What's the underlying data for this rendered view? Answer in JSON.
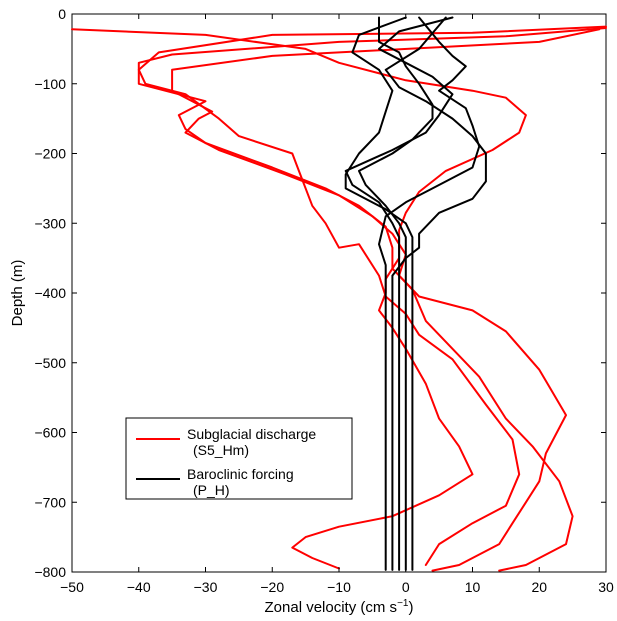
{
  "chart_data": {
    "type": "line",
    "title": "",
    "xlabel": "Zonal velocity (cm s",
    "xlabel_sup": "−1",
    "xlabel_close": ")",
    "ylabel": "Depth (m)",
    "xlim": [
      -50,
      30
    ],
    "ylim": [
      -800,
      0
    ],
    "xticks": [
      -50,
      -40,
      -30,
      -20,
      -10,
      0,
      10,
      20,
      30
    ],
    "xtick_labels": [
      "−50",
      "−40",
      "−30",
      "−20",
      "−10",
      "0",
      "10",
      "20",
      "30"
    ],
    "yticks": [
      0,
      -100,
      -200,
      -300,
      -400,
      -500,
      -600,
      -700,
      -800
    ],
    "ytick_labels": [
      "0",
      "−100",
      "−200",
      "−300",
      "−400",
      "−500",
      "−600",
      "−700",
      "−800"
    ],
    "grid": false,
    "legend": {
      "placement": "lower-left",
      "entries": [
        {
          "line1": "Subglacial discharge",
          "line2": "(S5_Hm)",
          "color": "#ff0000"
        },
        {
          "line1": "Baroclinic forcing",
          "line2": "(P_H)",
          "color": "#000000"
        }
      ]
    },
    "series": [
      {
        "group": "Subglacial discharge",
        "color": "#ff0000",
        "points": [
          [
            30,
            -18
          ],
          [
            10,
            -27
          ],
          [
            -20,
            -30
          ],
          [
            -37,
            -55
          ],
          [
            -40,
            -80
          ],
          [
            -39,
            -100
          ],
          [
            -33,
            -115
          ],
          [
            -28,
            -150
          ],
          [
            -25,
            -175
          ],
          [
            -17,
            -200
          ],
          [
            -16,
            -225
          ],
          [
            -14,
            -275
          ],
          [
            -12,
            -300
          ],
          [
            -10,
            -335
          ],
          [
            -7,
            -330
          ],
          [
            -4,
            -375
          ],
          [
            -3,
            -405
          ],
          [
            0,
            -430
          ],
          [
            2,
            -460
          ],
          [
            7,
            -495
          ],
          [
            12,
            -560
          ],
          [
            16,
            -610
          ],
          [
            17,
            -660
          ],
          [
            15,
            -705
          ],
          [
            10,
            -730
          ],
          [
            5,
            -760
          ],
          [
            3,
            -790
          ]
        ]
      },
      {
        "group": "Subglacial discharge",
        "color": "#ff0000",
        "points": [
          [
            30,
            -20
          ],
          [
            15,
            -32
          ],
          [
            -10,
            -40
          ],
          [
            -35,
            -58
          ],
          [
            -40,
            -70
          ],
          [
            -40,
            -100
          ],
          [
            -30,
            -125
          ],
          [
            -34,
            -145
          ],
          [
            -33,
            -165
          ],
          [
            -30,
            -185
          ],
          [
            -20,
            -220
          ],
          [
            -12,
            -250
          ],
          [
            -7,
            -275
          ],
          [
            -3,
            -305
          ],
          [
            -2,
            -335
          ],
          [
            -2,
            -365
          ],
          [
            1,
            -395
          ],
          [
            3,
            -440
          ],
          [
            6,
            -470
          ],
          [
            11,
            -520
          ],
          [
            15,
            -580
          ],
          [
            19,
            -620
          ],
          [
            23,
            -670
          ],
          [
            25,
            -720
          ],
          [
            24,
            -760
          ],
          [
            18,
            -790
          ],
          [
            14,
            -798
          ]
        ]
      },
      {
        "group": "Subglacial discharge",
        "color": "#ff0000",
        "points": [
          [
            29,
            -22
          ],
          [
            20,
            -40
          ],
          [
            -20,
            -60
          ],
          [
            -35,
            -80
          ],
          [
            -35,
            -110
          ],
          [
            -29,
            -140
          ],
          [
            -31,
            -150
          ],
          [
            -33,
            -170
          ],
          [
            -28,
            -195
          ],
          [
            -18,
            -230
          ],
          [
            -10,
            -260
          ],
          [
            -5,
            -290
          ],
          [
            -2,
            -315
          ],
          [
            0,
            -345
          ],
          [
            -1,
            -375
          ],
          [
            2,
            -405
          ],
          [
            10,
            -425
          ],
          [
            15,
            -455
          ],
          [
            20,
            -510
          ],
          [
            24,
            -575
          ],
          [
            21,
            -630
          ],
          [
            20,
            -670
          ],
          [
            18,
            -700
          ],
          [
            16,
            -730
          ],
          [
            14,
            -760
          ],
          [
            8,
            -790
          ],
          [
            4,
            -798
          ]
        ]
      },
      {
        "group": "Subglacial discharge",
        "color": "#ff0000",
        "points": [
          [
            -50,
            -22
          ],
          [
            -30,
            -30
          ],
          [
            -15,
            -50
          ],
          [
            -10,
            -70
          ],
          [
            0,
            -95
          ],
          [
            10,
            -110
          ],
          [
            15,
            -120
          ],
          [
            18,
            -145
          ],
          [
            17,
            -170
          ],
          [
            13,
            -195
          ],
          [
            6,
            -225
          ],
          [
            2,
            -255
          ],
          [
            0,
            -285
          ],
          [
            -1,
            -310
          ],
          [
            -1,
            -350
          ],
          [
            -3,
            -380
          ],
          [
            -3,
            -400
          ],
          [
            -4,
            -425
          ],
          [
            -2,
            -450
          ],
          [
            0,
            -480
          ],
          [
            3,
            -530
          ],
          [
            5,
            -580
          ],
          [
            8,
            -620
          ],
          [
            10,
            -660
          ],
          [
            5,
            -690
          ],
          [
            -2,
            -720
          ],
          [
            -10,
            -735
          ],
          [
            -15,
            -750
          ],
          [
            -17,
            -765
          ],
          [
            -14,
            -780
          ],
          [
            -10,
            -795
          ]
        ]
      },
      {
        "group": "Baroclinic forcing",
        "color": "#000000",
        "points": [
          [
            -4,
            -5
          ],
          [
            -4,
            -40
          ],
          [
            -1,
            -55
          ],
          [
            0,
            -75
          ],
          [
            2,
            -100
          ],
          [
            4,
            -130
          ],
          [
            4,
            -150
          ],
          [
            1,
            -180
          ],
          [
            -2,
            -200
          ],
          [
            -7,
            -225
          ],
          [
            -6,
            -245
          ],
          [
            -3,
            -275
          ],
          [
            -1,
            -300
          ],
          [
            0,
            -320
          ],
          [
            0,
            -400
          ],
          [
            0,
            -600
          ],
          [
            0,
            -797
          ]
        ]
      },
      {
        "group": "Baroclinic forcing",
        "color": "#000000",
        "points": [
          [
            0,
            -5
          ],
          [
            -7,
            -30
          ],
          [
            -8,
            -55
          ],
          [
            -4,
            -80
          ],
          [
            -2,
            -110
          ],
          [
            -3,
            -140
          ],
          [
            -4,
            -170
          ],
          [
            -7,
            -200
          ],
          [
            -9,
            -230
          ],
          [
            -9,
            -250
          ],
          [
            -3,
            -280
          ],
          [
            0,
            -300
          ],
          [
            1,
            -320
          ],
          [
            1,
            -400
          ],
          [
            1,
            -600
          ],
          [
            1,
            -797
          ]
        ]
      },
      {
        "group": "Baroclinic forcing",
        "color": "#000000",
        "points": [
          [
            7,
            -5
          ],
          [
            -1,
            -25
          ],
          [
            -4,
            -50
          ],
          [
            0,
            -70
          ],
          [
            4,
            -90
          ],
          [
            7,
            -115
          ],
          [
            5,
            -145
          ],
          [
            3,
            -170
          ],
          [
            -2,
            -195
          ],
          [
            -9,
            -225
          ],
          [
            -8,
            -245
          ],
          [
            -4,
            -270
          ],
          [
            -2,
            -300
          ],
          [
            -1,
            -320
          ],
          [
            -1,
            -400
          ],
          [
            -1,
            -600
          ],
          [
            -1,
            -797
          ]
        ]
      },
      {
        "group": "Baroclinic forcing",
        "color": "#000000",
        "points": [
          [
            2,
            -5
          ],
          [
            5,
            -40
          ],
          [
            7,
            -60
          ],
          [
            9,
            -75
          ],
          [
            7,
            -95
          ],
          [
            5,
            -110
          ],
          [
            9,
            -135
          ],
          [
            10,
            -160
          ],
          [
            11,
            -190
          ],
          [
            10,
            -220
          ],
          [
            4,
            -250
          ],
          [
            0,
            -270
          ],
          [
            -3,
            -290
          ],
          [
            -4,
            -330
          ],
          [
            -3,
            -360
          ],
          [
            -3,
            -400
          ],
          [
            -3,
            -600
          ],
          [
            -3,
            -797
          ]
        ]
      },
      {
        "group": "Baroclinic forcing",
        "color": "#000000",
        "points": [
          [
            6,
            -5
          ],
          [
            2,
            -50
          ],
          [
            -3,
            -80
          ],
          [
            -1,
            -105
          ],
          [
            3,
            -125
          ],
          [
            7,
            -150
          ],
          [
            10,
            -175
          ],
          [
            12,
            -200
          ],
          [
            12,
            -240
          ],
          [
            10,
            -265
          ],
          [
            5,
            -285
          ],
          [
            2,
            -315
          ],
          [
            2,
            -335
          ],
          [
            0,
            -350
          ],
          [
            -2,
            -375
          ],
          [
            -2,
            -400
          ],
          [
            -2,
            -600
          ],
          [
            -2,
            -797
          ]
        ]
      }
    ]
  }
}
